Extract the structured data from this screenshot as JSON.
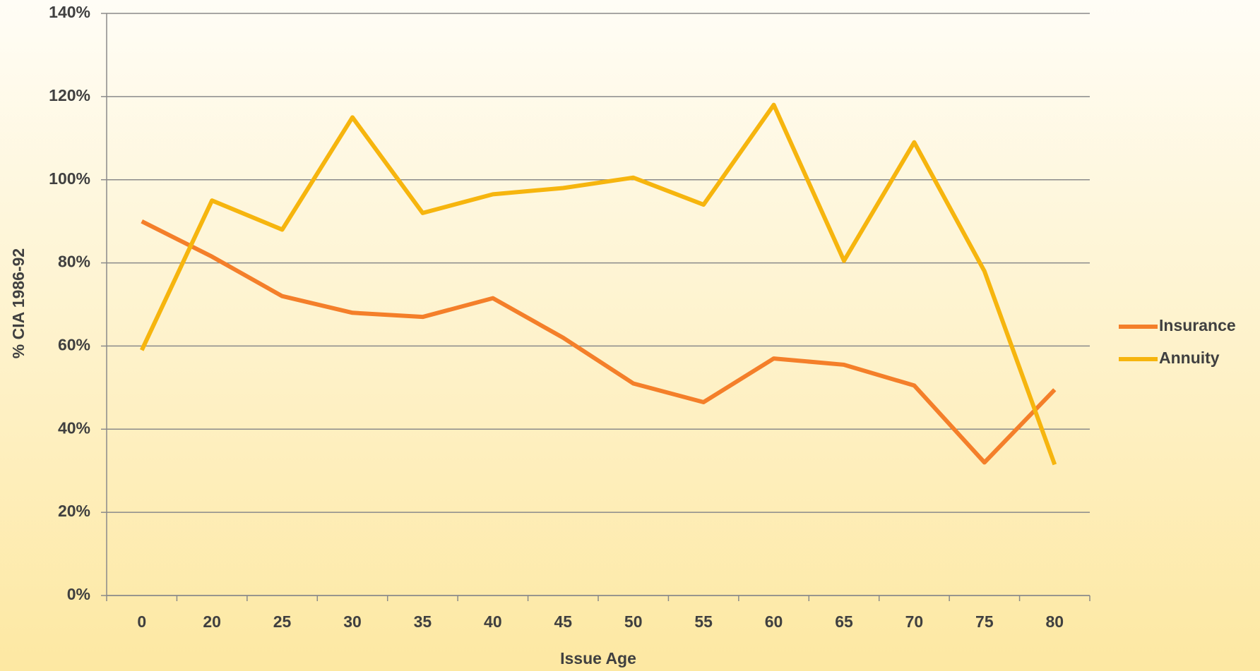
{
  "chart_data": {
    "type": "line",
    "y_label": "% CIA 1986-92",
    "x_label": "Issue Age",
    "categories": [
      "0",
      "20",
      "25",
      "30",
      "35",
      "40",
      "45",
      "50",
      "55",
      "60",
      "65",
      "70",
      "75",
      "80"
    ],
    "series": [
      {
        "name": "Insurance",
        "color": "#f47f2a",
        "values": [
          90,
          81.5,
          72,
          68,
          67,
          71.5,
          62,
          51,
          46.5,
          57,
          55.5,
          50.5,
          32,
          49.5
        ]
      },
      {
        "name": "Annuity",
        "color": "#f6b50e",
        "values": [
          59,
          95,
          88,
          115,
          92,
          96.5,
          98,
          100.5,
          94,
          118,
          80.5,
          109,
          78,
          31.5
        ]
      }
    ],
    "ylim": [
      0,
      140
    ],
    "yticks": [
      {
        "value": 0,
        "label": "0%"
      },
      {
        "value": 20,
        "label": "20%"
      },
      {
        "value": 40,
        "label": "40%"
      },
      {
        "value": 60,
        "label": "60%"
      },
      {
        "value": 80,
        "label": "80%"
      },
      {
        "value": 100,
        "label": "100%"
      },
      {
        "value": 120,
        "label": "120%"
      },
      {
        "value": 140,
        "label": "140%"
      }
    ],
    "grid": true,
    "legend": "right"
  }
}
